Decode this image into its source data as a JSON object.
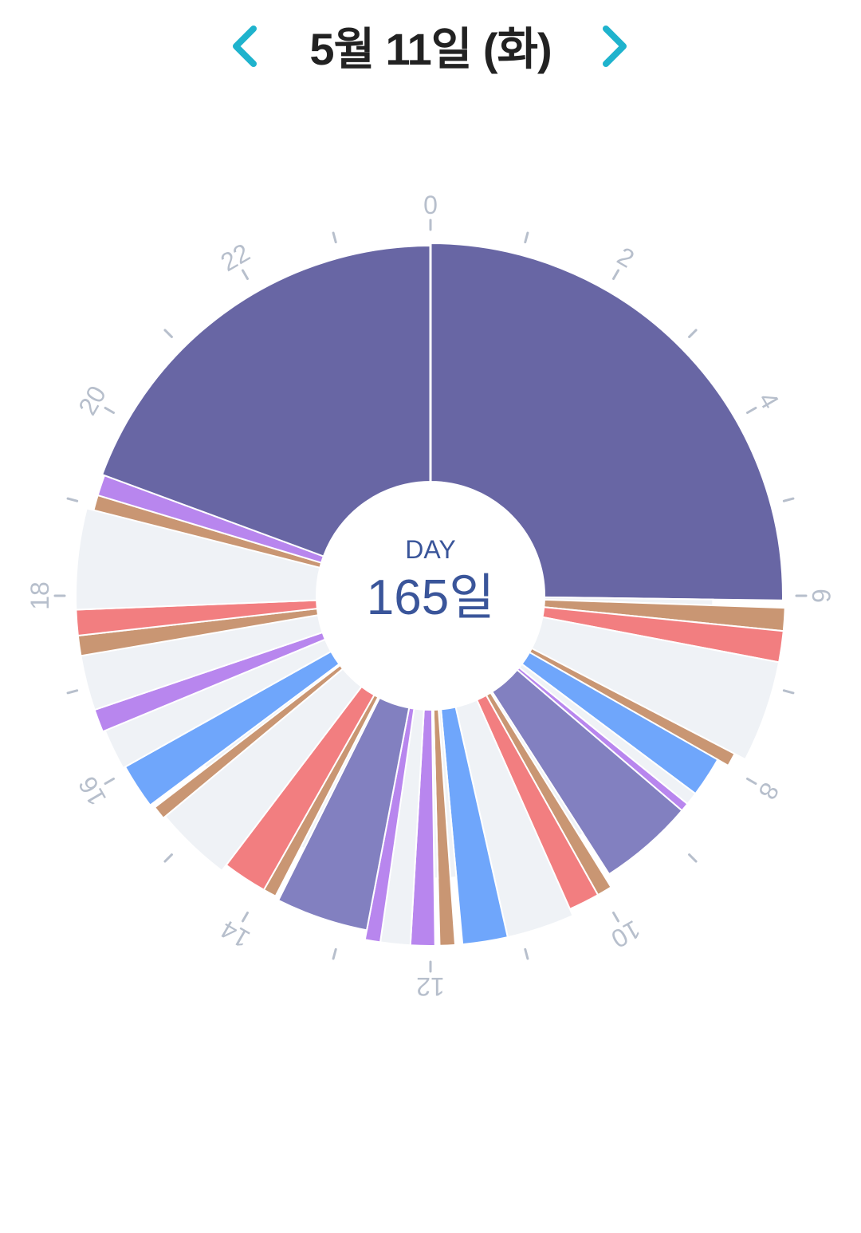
{
  "header": {
    "date": "5월 11일 (화)",
    "prev_icon": "chevron-left-icon",
    "next_icon": "chevron-right-icon",
    "accent_color": "#1fb3cd"
  },
  "center": {
    "label": "DAY",
    "count": "165일"
  },
  "chart_data": {
    "type": "pie",
    "variant": "24-hour radial clock (donut) with variable-length segments",
    "axis": {
      "range_hours": [
        0,
        24
      ],
      "tick_labels": [
        "0",
        "2",
        "4",
        "6",
        "8",
        "10",
        "12",
        "14",
        "16",
        "18",
        "20",
        "22"
      ],
      "color": "#b7bfcc"
    },
    "colors": {
      "sleep": "#6866a4",
      "nap": "#8280c0",
      "purple": "#b886ee",
      "tan": "#c99673",
      "red": "#f27e80",
      "blue": "#6fa6fb",
      "empty": "#eff2f6"
    },
    "segments": [
      {
        "start": 0.0,
        "end": 6.05,
        "color": "sleep",
        "extent": 0.99
      },
      {
        "start": 6.05,
        "end": 6.13,
        "color": "empty",
        "extent": 0.7
      },
      {
        "start": 6.13,
        "end": 6.38,
        "color": "tan",
        "extent": 1.0
      },
      {
        "start": 6.38,
        "end": 6.72,
        "color": "red",
        "extent": 1.0
      },
      {
        "start": 6.72,
        "end": 7.83,
        "color": "empty",
        "extent": 1.0
      },
      {
        "start": 7.83,
        "end": 7.98,
        "color": "tan",
        "extent": 0.95
      },
      {
        "start": 7.98,
        "end": 8.45,
        "color": "blue",
        "extent": 0.9
      },
      {
        "start": 8.45,
        "end": 8.6,
        "color": "empty",
        "extent": 0.9
      },
      {
        "start": 8.6,
        "end": 8.7,
        "color": "purple",
        "extent": 0.9
      },
      {
        "start": 8.7,
        "end": 9.82,
        "color": "nap",
        "extent": 0.9
      },
      {
        "start": 9.82,
        "end": 9.88,
        "color": "empty",
        "extent": 0.7
      },
      {
        "start": 9.88,
        "end": 10.05,
        "color": "tan",
        "extent": 0.95
      },
      {
        "start": 10.05,
        "end": 10.4,
        "color": "red",
        "extent": 0.95
      },
      {
        "start": 10.4,
        "end": 11.15,
        "color": "empty",
        "extent": 0.98
      },
      {
        "start": 11.15,
        "end": 11.65,
        "color": "blue",
        "extent": 0.98
      },
      {
        "start": 11.65,
        "end": 11.73,
        "color": "empty",
        "extent": 0.7
      },
      {
        "start": 11.73,
        "end": 11.9,
        "color": "tan",
        "extent": 0.98
      },
      {
        "start": 11.9,
        "end": 11.95,
        "color": "empty",
        "extent": 0.7
      },
      {
        "start": 11.95,
        "end": 12.22,
        "color": "purple",
        "extent": 0.98
      },
      {
        "start": 12.22,
        "end": 12.55,
        "color": "empty",
        "extent": 0.98
      },
      {
        "start": 12.55,
        "end": 12.72,
        "color": "purple",
        "extent": 0.98
      },
      {
        "start": 12.72,
        "end": 13.77,
        "color": "nap",
        "extent": 0.94
      },
      {
        "start": 13.77,
        "end": 13.82,
        "color": "empty",
        "extent": 0.7
      },
      {
        "start": 13.82,
        "end": 13.97,
        "color": "tan",
        "extent": 0.93
      },
      {
        "start": 13.97,
        "end": 14.48,
        "color": "red",
        "extent": 0.93
      },
      {
        "start": 14.48,
        "end": 15.35,
        "color": "empty",
        "extent": 0.96
      },
      {
        "start": 15.35,
        "end": 15.5,
        "color": "tan",
        "extent": 0.97
      },
      {
        "start": 15.5,
        "end": 15.55,
        "color": "empty",
        "extent": 0.7
      },
      {
        "start": 15.55,
        "end": 16.05,
        "color": "blue",
        "extent": 0.98
      },
      {
        "start": 16.05,
        "end": 16.5,
        "color": "empty",
        "extent": 0.99
      },
      {
        "start": 16.5,
        "end": 16.75,
        "color": "purple",
        "extent": 1.0
      },
      {
        "start": 16.75,
        "end": 17.35,
        "color": "empty",
        "extent": 1.0
      },
      {
        "start": 17.35,
        "end": 17.57,
        "color": "tan",
        "extent": 1.0
      },
      {
        "start": 17.57,
        "end": 17.85,
        "color": "red",
        "extent": 1.0
      },
      {
        "start": 17.85,
        "end": 18.95,
        "color": "empty",
        "extent": 1.0
      },
      {
        "start": 18.95,
        "end": 19.12,
        "color": "tan",
        "extent": 0.97
      },
      {
        "start": 19.12,
        "end": 19.35,
        "color": "purple",
        "extent": 0.97
      },
      {
        "start": 19.35,
        "end": 24.0,
        "color": "sleep",
        "extent": 0.98
      }
    ]
  }
}
